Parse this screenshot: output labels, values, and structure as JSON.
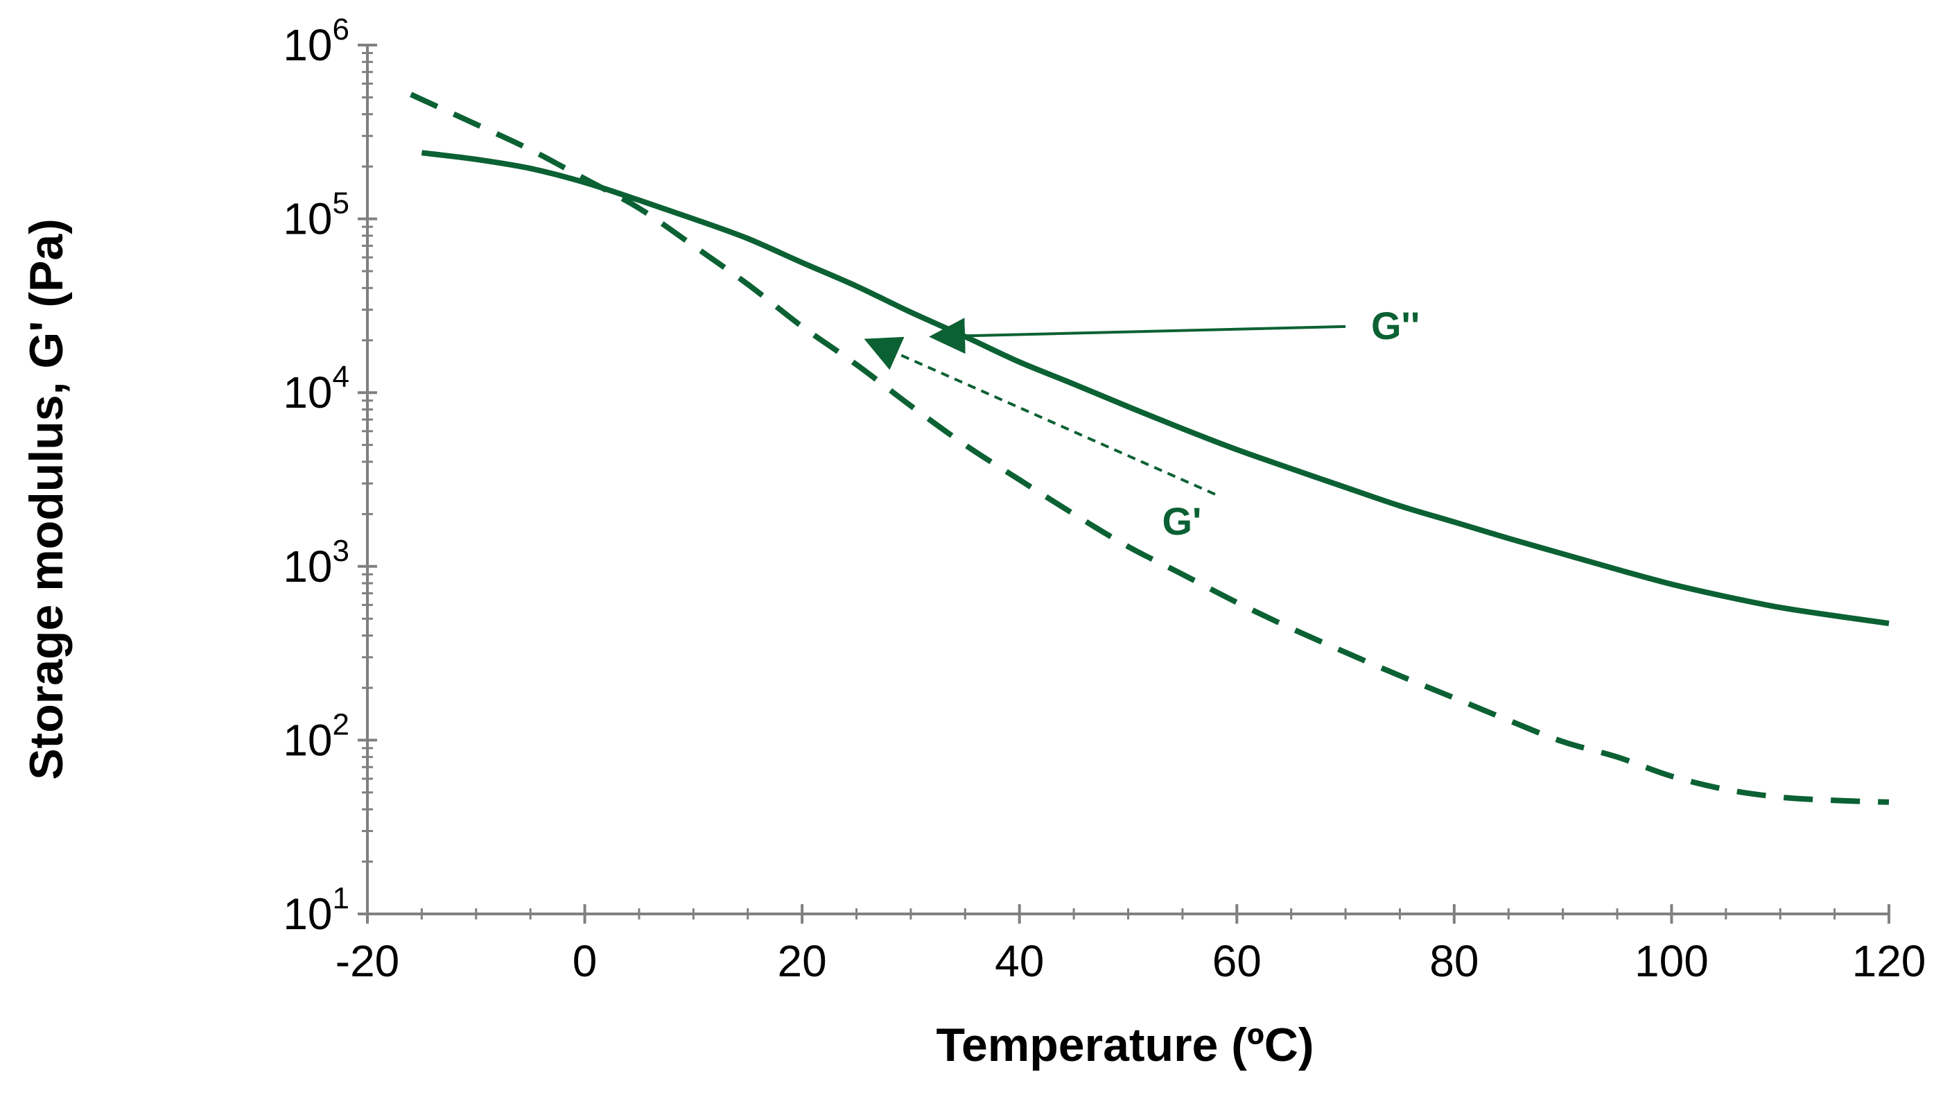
{
  "colors": {
    "series": "#0b6133",
    "axis": "#808080",
    "text": "#000000",
    "background": "#ffffff"
  },
  "chart_data": {
    "type": "line",
    "title": "",
    "xlabel": "Temperature (ºC)",
    "ylabel": "Storage modulus, G' (Pa)",
    "xlim": [
      -20,
      120
    ],
    "ylim": [
      10,
      1000000
    ],
    "yscale": "log",
    "x_ticks": [
      -20,
      0,
      20,
      40,
      60,
      80,
      100,
      120
    ],
    "x_tick_labels": [
      "-20",
      "0",
      "20",
      "40",
      "60",
      "80",
      "100",
      "120"
    ],
    "y_ticks": [
      {
        "value": 10,
        "base": "10",
        "exp": "1"
      },
      {
        "value": 100,
        "base": "10",
        "exp": "2"
      },
      {
        "value": 1000,
        "base": "10",
        "exp": "3"
      },
      {
        "value": 10000,
        "base": "10",
        "exp": "4"
      },
      {
        "value": 100000,
        "base": "10",
        "exp": "5"
      },
      {
        "value": 1000000,
        "base": "10",
        "exp": "6"
      }
    ],
    "grid": false,
    "legend": "none",
    "series": [
      {
        "name": "G''",
        "style": "solid",
        "x": [
          -15,
          -10,
          -5,
          0,
          5,
          10,
          15,
          20,
          25,
          30,
          35,
          40,
          45,
          50,
          55,
          60,
          65,
          70,
          75,
          80,
          85,
          90,
          95,
          100,
          105,
          110,
          115,
          120
        ],
        "y": [
          240000,
          220000,
          195000,
          162000,
          128000,
          100000,
          77000,
          56000,
          41000,
          29000,
          21000,
          15000,
          11200,
          8300,
          6200,
          4700,
          3650,
          2850,
          2230,
          1800,
          1450,
          1180,
          960,
          790,
          670,
          580,
          520,
          470
        ]
      },
      {
        "name": "G'",
        "style": "dashed",
        "x": [
          -16,
          -10,
          -5,
          0,
          5,
          10,
          15,
          20,
          25,
          30,
          35,
          40,
          45,
          50,
          55,
          60,
          65,
          70,
          75,
          80,
          85,
          90,
          95,
          100,
          105,
          110,
          115,
          120
        ],
        "y": [
          520000,
          350000,
          250000,
          170000,
          115000,
          70000,
          42000,
          24000,
          14500,
          8400,
          5000,
          3150,
          2000,
          1300,
          900,
          620,
          440,
          320,
          235,
          175,
          130,
          98,
          80,
          62,
          52,
          47,
          45,
          44
        ]
      }
    ],
    "annotations": [
      {
        "text": "G''",
        "from": [
          70,
          24000
        ],
        "to": [
          32,
          21000
        ],
        "style": "solid"
      },
      {
        "text": "G'",
        "from": [
          58,
          2600
        ],
        "to": [
          26,
          20000
        ],
        "style": "dashed"
      }
    ]
  }
}
